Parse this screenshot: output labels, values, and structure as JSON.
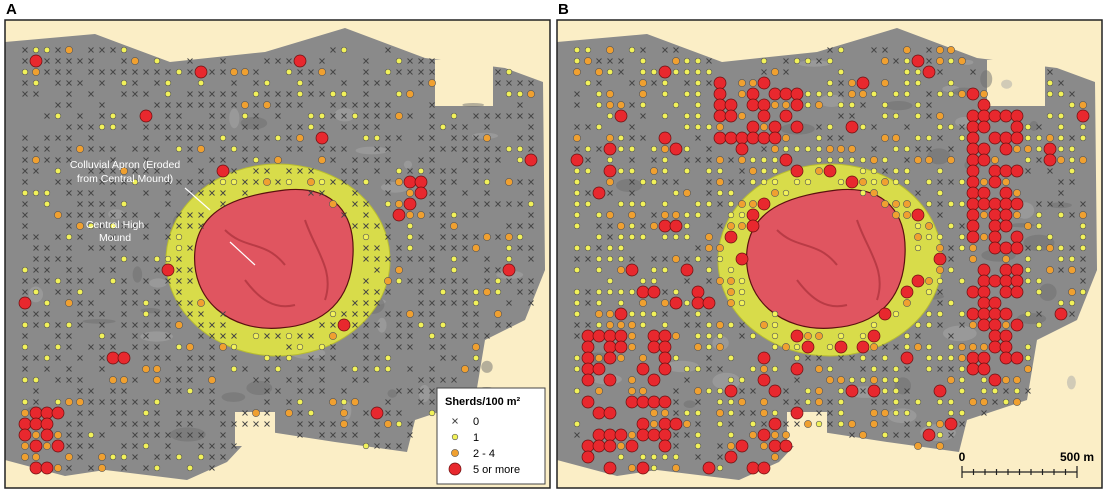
{
  "panels": [
    {
      "label": "A",
      "annotations": [
        "Colluvial Apron (Eroded",
        "from Central Mound)",
        "Central High",
        "Mound"
      ],
      "legend": {
        "title": "Sherds/100 m²",
        "entries": [
          "0",
          "1",
          "2 - 4",
          "5 or more"
        ]
      }
    },
    {
      "label": "B",
      "scale_bar": {
        "start": "0",
        "end": "500 m"
      }
    }
  ]
}
